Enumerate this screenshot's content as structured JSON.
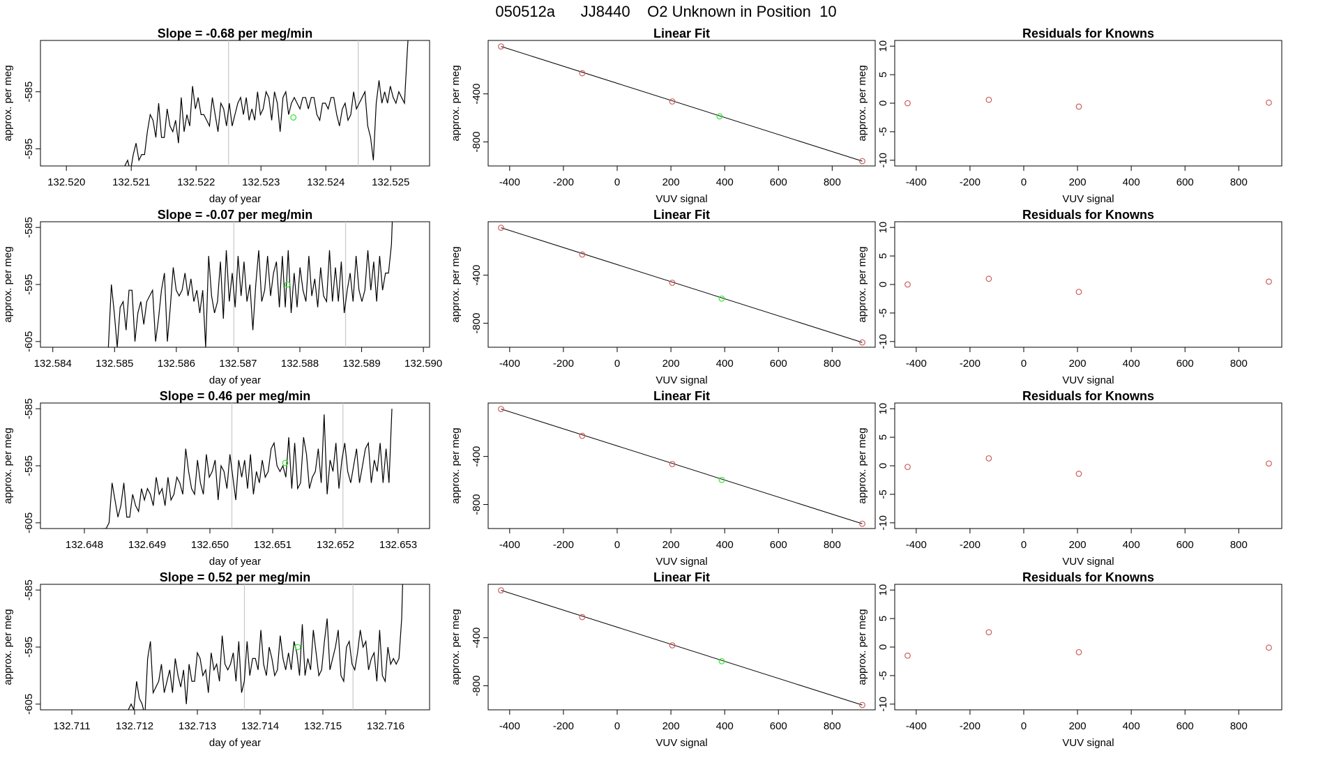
{
  "page_title": "050512a      JJ8440    O2 Unknown in Position  10",
  "colors": {
    "trace": "#000000",
    "known": "#cd5c5c",
    "unknown": "#2ee82e",
    "vline": "#c8c8c8",
    "axis": "#000000"
  },
  "chart_data": [
    {
      "type": "line",
      "title": "Slope =  -0.68  per meg/min",
      "xlabel": "day of year",
      "ylabel": "approx. per meg",
      "xlim": [
        132.5196,
        132.5256
      ],
      "ylim": [
        -598,
        -576
      ],
      "xticks": [
        "132.520",
        "132.521",
        "132.522",
        "132.523",
        "132.524",
        "132.525"
      ],
      "yticks": [
        "-585",
        "-595"
      ],
      "vlines": [
        132.5225,
        132.5245
      ],
      "unknown_point": {
        "x": 132.5235,
        "y": -589.5
      },
      "series": [
        {
          "x_start": 132.5209,
          "x_end": 132.5253,
          "values": [
            -598,
            -597,
            -599,
            -596,
            -594,
            -597,
            -596,
            -596,
            -592,
            -589,
            -590,
            -593,
            -587,
            -593,
            -593,
            -588,
            -591,
            -592,
            -590,
            -594,
            -586,
            -592,
            -589,
            -591,
            -584,
            -588,
            -586,
            -589,
            -589,
            -590,
            -591,
            -586,
            -589,
            -592,
            -587,
            -588,
            -591,
            -587,
            -591,
            -589,
            -587,
            -586,
            -589,
            -586,
            -590,
            -588,
            -590,
            -585,
            -589,
            -588,
            -585,
            -586,
            -590,
            -585,
            -587,
            -592,
            -586,
            -585,
            -589,
            -587,
            -586,
            -587,
            -588,
            -586,
            -586,
            -588,
            -586,
            -586,
            -589,
            -590,
            -587,
            -587,
            -588,
            -586,
            -586,
            -589,
            -591,
            -588,
            -587,
            -590,
            -589,
            -585,
            -588,
            -587,
            -586,
            -585,
            -591,
            -593,
            -597,
            -587,
            -583,
            -587,
            -585,
            -587,
            -584,
            -586,
            -587,
            -585,
            -586,
            -587,
            -578,
            -570
          ]
        }
      ]
    },
    {
      "type": "scatter",
      "title": "Linear Fit",
      "xlabel": "VUV signal",
      "ylabel": "approx. per meg",
      "xlim": [
        -480,
        960
      ],
      "ylim": [
        -1000,
        45
      ],
      "xticks": [
        -400,
        -200,
        0,
        200,
        400,
        600,
        800
      ],
      "yticks": [
        -400,
        -800
      ],
      "fit_line": {
        "x": [
          -432,
          912
        ],
        "y": [
          -5,
          -960
        ]
      },
      "known_points": [
        {
          "x": -432,
          "y": -5
        },
        {
          "x": -130,
          "y": -228
        },
        {
          "x": 205,
          "y": -463
        },
        {
          "x": 912,
          "y": -960
        }
      ],
      "unknown_point": {
        "x": 381,
        "y": -587
      }
    },
    {
      "type": "scatter",
      "title": "Residuals for Knowns",
      "xlabel": "VUV signal",
      "ylabel": "approx. per meg",
      "xlim": [
        -480,
        960
      ],
      "ylim": [
        -11,
        11
      ],
      "xticks": [
        -400,
        -200,
        0,
        200,
        400,
        600,
        800
      ],
      "yticks": [
        -10,
        -5,
        0,
        5,
        10
      ],
      "points": [
        {
          "x": -432,
          "y": 0
        },
        {
          "x": -130,
          "y": 0.6
        },
        {
          "x": 205,
          "y": -0.6
        },
        {
          "x": 912,
          "y": 0.1
        }
      ]
    },
    {
      "type": "line",
      "title": "Slope =  -0.07  per meg/min",
      "xlabel": "day of year",
      "ylabel": "approx. per meg",
      "xlim": [
        132.5838,
        132.5901
      ],
      "ylim": [
        -606,
        -584
      ],
      "xticks": [
        "132.584",
        "132.585",
        "132.586",
        "132.587",
        "132.588",
        "132.589",
        "132.590"
      ],
      "yticks": [
        "-585",
        "-595",
        "-605"
      ],
      "vlines": [
        132.58693,
        132.58874
      ],
      "unknown_point": {
        "x": 132.5878,
        "y": -595
      },
      "series": [
        {
          "x_start": 132.5849,
          "x_end": 132.58953,
          "values": [
            -606,
            -595,
            -600,
            -606,
            -599,
            -598,
            -603,
            -596,
            -596,
            -605,
            -600,
            -598,
            -602,
            -598,
            -597,
            -596,
            -605,
            -601,
            -596,
            -593,
            -605,
            -599,
            -592,
            -596,
            -597,
            -596,
            -593,
            -597,
            -594,
            -598,
            -596,
            -600,
            -596,
            -606,
            -590,
            -597,
            -600,
            -598,
            -591,
            -601,
            -589,
            -598,
            -593,
            -599,
            -590,
            -597,
            -591,
            -598,
            -595,
            -603,
            -595,
            -589,
            -598,
            -596,
            -590,
            -597,
            -593,
            -591,
            -599,
            -590,
            -599,
            -589,
            -600,
            -593,
            -599,
            -592,
            -596,
            -598,
            -590,
            -597,
            -594,
            -599,
            -592,
            -597,
            -598,
            -589,
            -598,
            -592,
            -598,
            -591,
            -600,
            -596,
            -593,
            -598,
            -590,
            -596,
            -598,
            -596,
            -589,
            -596,
            -591,
            -598,
            -590,
            -596,
            -593,
            -593,
            -588,
            -574
          ]
        }
      ]
    },
    {
      "type": "scatter",
      "title": "Linear Fit",
      "xlabel": "VUV signal",
      "ylabel": "approx. per meg",
      "xlim": [
        -480,
        960
      ],
      "ylim": [
        -1000,
        45
      ],
      "xticks": [
        -400,
        -200,
        0,
        200,
        400,
        600,
        800
      ],
      "yticks": [
        -400,
        -800
      ],
      "fit_line": {
        "x": [
          -432,
          912
        ],
        "y": [
          -5,
          -960
        ]
      },
      "known_points": [
        {
          "x": -432,
          "y": -5
        },
        {
          "x": -130,
          "y": -228
        },
        {
          "x": 205,
          "y": -463
        },
        {
          "x": 912,
          "y": -960
        }
      ],
      "unknown_point": {
        "x": 389,
        "y": -595
      }
    },
    {
      "type": "scatter",
      "title": "Residuals for Knowns",
      "xlabel": "VUV signal",
      "ylabel": "approx. per meg",
      "xlim": [
        -480,
        960
      ],
      "ylim": [
        -11,
        11
      ],
      "xticks": [
        -400,
        -200,
        0,
        200,
        400,
        600,
        800
      ],
      "yticks": [
        -10,
        -5,
        0,
        5,
        10
      ],
      "points": [
        {
          "x": -432,
          "y": 0
        },
        {
          "x": -130,
          "y": 1
        },
        {
          "x": 205,
          "y": -1.3
        },
        {
          "x": 912,
          "y": 0.5
        }
      ]
    },
    {
      "type": "line",
      "title": "Slope =  0.46  per meg/min",
      "xlabel": "day of year",
      "ylabel": "approx. per meg",
      "xlim": [
        132.6473,
        132.6535
      ],
      "ylim": [
        -606,
        -584
      ],
      "xticks": [
        "132.648",
        "132.649",
        "132.650",
        "132.651",
        "132.652",
        "132.653"
      ],
      "yticks": [
        "-585",
        "-595",
        "-605"
      ],
      "vlines": [
        132.65035,
        132.65212
      ],
      "unknown_point": {
        "x": 132.6512,
        "y": -594.5
      },
      "series": [
        {
          "x_start": 132.6483,
          "x_end": 132.6529,
          "values": [
            -606,
            -606,
            -605,
            -598,
            -601,
            -604,
            -602,
            -598,
            -604,
            -604,
            -600,
            -602,
            -603,
            -599,
            -601,
            -599,
            -600,
            -602,
            -597,
            -600,
            -599,
            -602,
            -597,
            -601,
            -600,
            -597,
            -598,
            -600,
            -592,
            -596,
            -599,
            -600,
            -594,
            -598,
            -600,
            -593,
            -597,
            -596,
            -594,
            -601,
            -595,
            -596,
            -599,
            -593,
            -597,
            -601,
            -594,
            -597,
            -594,
            -599,
            -593,
            -600,
            -596,
            -598,
            -594,
            -597,
            -596,
            -592,
            -591,
            -595,
            -596,
            -595,
            -597,
            -590,
            -599,
            -591,
            -599,
            -598,
            -590,
            -593,
            -599,
            -597,
            -596,
            -592,
            -598,
            -586,
            -600,
            -594,
            -596,
            -591,
            -599,
            -594,
            -591,
            -596,
            -598,
            -595,
            -592,
            -598,
            -595,
            -592,
            -591,
            -598,
            -594,
            -596,
            -591,
            -598,
            -592,
            -598,
            -585
          ]
        }
      ]
    },
    {
      "type": "scatter",
      "title": "Linear Fit",
      "xlabel": "VUV signal",
      "ylabel": "approx. per meg",
      "xlim": [
        -480,
        960
      ],
      "ylim": [
        -1000,
        45
      ],
      "xticks": [
        -400,
        -200,
        0,
        200,
        400,
        600,
        800
      ],
      "yticks": [
        -400,
        -800
      ],
      "fit_line": {
        "x": [
          -432,
          912
        ],
        "y": [
          -5,
          -960
        ]
      },
      "known_points": [
        {
          "x": -432,
          "y": -5
        },
        {
          "x": -130,
          "y": -228
        },
        {
          "x": 205,
          "y": -463
        },
        {
          "x": 912,
          "y": -960
        }
      ],
      "unknown_point": {
        "x": 389,
        "y": -595
      }
    },
    {
      "type": "scatter",
      "title": "Residuals for Knowns",
      "xlabel": "VUV signal",
      "ylabel": "approx. per meg",
      "xlim": [
        -480,
        960
      ],
      "ylim": [
        -11,
        11
      ],
      "xticks": [
        -400,
        -200,
        0,
        200,
        400,
        600,
        800
      ],
      "yticks": [
        -10,
        -5,
        0,
        5,
        10
      ],
      "points": [
        {
          "x": -432,
          "y": -0.2
        },
        {
          "x": -130,
          "y": 1.3
        },
        {
          "x": 205,
          "y": -1.4
        },
        {
          "x": 912,
          "y": 0.4
        }
      ]
    },
    {
      "type": "line",
      "title": "Slope =  0.52  per meg/min",
      "xlabel": "day of year",
      "ylabel": "approx. per meg",
      "xlim": [
        132.7105,
        132.7167
      ],
      "ylim": [
        -606,
        -584
      ],
      "xticks": [
        "132.711",
        "132.712",
        "132.713",
        "132.714",
        "132.715",
        "132.716"
      ],
      "yticks": [
        "-585",
        "-595",
        "-605"
      ],
      "vlines": [
        132.71375,
        132.71548
      ],
      "unknown_point": {
        "x": 132.7146,
        "y": -595
      },
      "series": [
        {
          "x_start": 132.7119,
          "x_end": 132.7163,
          "values": [
            -606,
            -605,
            -606,
            -601,
            -604,
            -605,
            -607,
            -597,
            -594,
            -603,
            -602,
            -601,
            -598,
            -603,
            -601,
            -599,
            -603,
            -597,
            -600,
            -602,
            -599,
            -605,
            -598,
            -601,
            -601,
            -596,
            -597,
            -600,
            -599,
            -603,
            -596,
            -599,
            -598,
            -601,
            -593,
            -598,
            -599,
            -598,
            -596,
            -601,
            -594,
            -603,
            -601,
            -594,
            -600,
            -597,
            -597,
            -599,
            -592,
            -598,
            -600,
            -595,
            -597,
            -600,
            -599,
            -593,
            -597,
            -599,
            -596,
            -599,
            -594,
            -596,
            -600,
            -591,
            -600,
            -597,
            -599,
            -592,
            -596,
            -600,
            -599,
            -594,
            -590,
            -599,
            -597,
            -595,
            -592,
            -600,
            -601,
            -595,
            -594,
            -598,
            -599,
            -596,
            -592,
            -595,
            -594,
            -599,
            -597,
            -596,
            -601,
            -592,
            -600,
            -601,
            -595,
            -598,
            -597,
            -598,
            -597,
            -590,
            -572
          ]
        }
      ]
    },
    {
      "type": "scatter",
      "title": "Linear Fit",
      "xlabel": "VUV signal",
      "ylabel": "approx. per meg",
      "xlim": [
        -480,
        960
      ],
      "ylim": [
        -1000,
        45
      ],
      "xticks": [
        -400,
        -200,
        0,
        200,
        400,
        600,
        800
      ],
      "yticks": [
        -400,
        -800
      ],
      "fit_line": {
        "x": [
          -432,
          912
        ],
        "y": [
          -5,
          -960
        ]
      },
      "known_points": [
        {
          "x": -432,
          "y": -5
        },
        {
          "x": -130,
          "y": -228
        },
        {
          "x": 205,
          "y": -463
        },
        {
          "x": 912,
          "y": -960
        }
      ],
      "unknown_point": {
        "x": 389,
        "y": -595
      }
    },
    {
      "type": "scatter",
      "title": "Residuals for Knowns",
      "xlabel": "VUV signal",
      "ylabel": "approx. per meg",
      "xlim": [
        -480,
        960
      ],
      "ylim": [
        -11,
        11
      ],
      "xticks": [
        -400,
        -200,
        0,
        200,
        400,
        600,
        800
      ],
      "yticks": [
        -10,
        -5,
        0,
        5,
        10
      ],
      "points": [
        {
          "x": -432,
          "y": -1.5
        },
        {
          "x": -130,
          "y": 2.6
        },
        {
          "x": 205,
          "y": -0.9
        },
        {
          "x": 912,
          "y": -0.1
        }
      ]
    }
  ]
}
